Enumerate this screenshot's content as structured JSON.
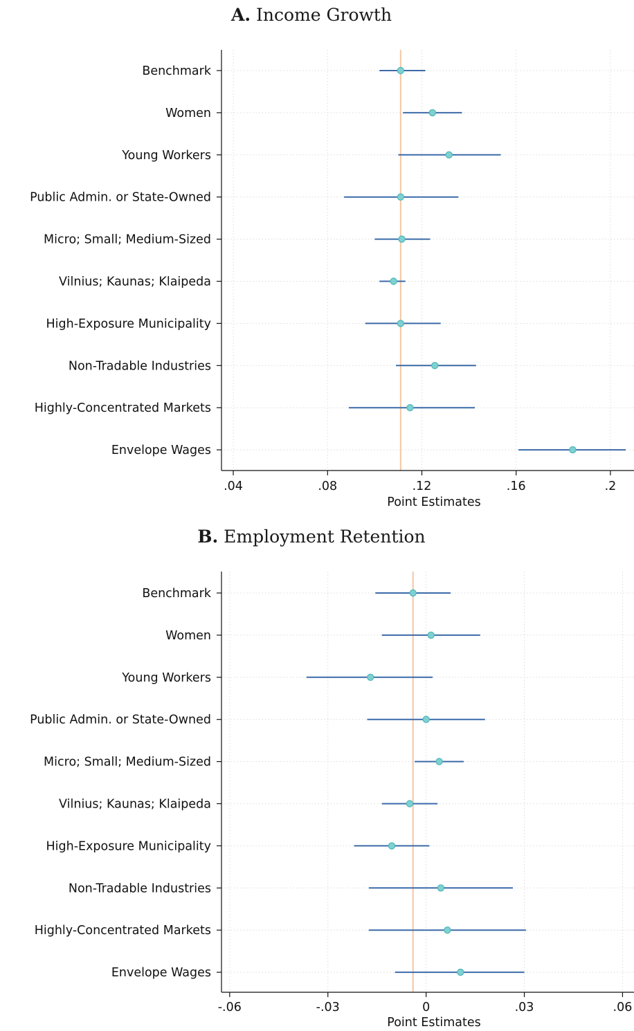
{
  "chart_data": [
    {
      "type": "scatter",
      "panel_letter": "A.",
      "title": "Income Growth",
      "xlabel": "Point Estimates",
      "xlim": [
        0.035,
        0.21
      ],
      "xticks": [
        0.04,
        0.08,
        0.12,
        0.16,
        0.2
      ],
      "xtick_labels": [
        ".04",
        ".08",
        ".12",
        ".16",
        ".2"
      ],
      "reference_line": 0.111,
      "grid": true,
      "categories": [
        "Benchmark",
        "Women",
        "Young Workers",
        "Public Admin. or State-Owned",
        "Micro; Small; Medium-Sized",
        "Vilnius; Kaunas; Klaipeda",
        "High-Exposure Municipality",
        "Non-Tradable Industries",
        "Highly-Concentrated Markets",
        "Envelope Wages"
      ],
      "series": [
        {
          "estimates": [
            0.111,
            0.1245,
            0.1315,
            0.111,
            0.1115,
            0.108,
            0.111,
            0.1255,
            0.115,
            0.184
          ],
          "ci_low": [
            0.102,
            0.112,
            0.11,
            0.087,
            0.1,
            0.102,
            0.096,
            0.109,
            0.089,
            0.161
          ],
          "ci_high": [
            0.1215,
            0.137,
            0.1535,
            0.1355,
            0.1235,
            0.113,
            0.128,
            0.143,
            0.1425,
            0.2065
          ]
        }
      ],
      "colors": {
        "marker": "#7fd1d1",
        "marker_edge": "#4fb5b8",
        "ci": "#3a6aa8",
        "reference": "#f4c6a4",
        "grid": "#dcdcdc"
      }
    },
    {
      "type": "scatter",
      "panel_letter": "B.",
      "title": "Employment Retention",
      "xlabel": "Point Estimates",
      "xlim": [
        -0.0625,
        0.0635
      ],
      "xticks": [
        -0.06,
        -0.03,
        0,
        0.03,
        0.06
      ],
      "xtick_labels": [
        "-.06",
        "-.03",
        "0",
        ".03",
        ".06"
      ],
      "reference_line": -0.004,
      "grid": true,
      "categories": [
        "Benchmark",
        "Women",
        "Young Workers",
        "Public Admin. or State-Owned",
        "Micro; Small; Medium-Sized",
        "Vilnius; Kaunas; Klaipeda",
        "High-Exposure Municipality",
        "Non-Tradable Industries",
        "Highly-Concentrated Markets",
        "Envelope Wages"
      ],
      "series": [
        {
          "estimates": [
            -0.004,
            0.0015,
            -0.017,
            0.0,
            0.004,
            -0.005,
            -0.0105,
            0.0045,
            0.0065,
            0.0105
          ],
          "ci_low": [
            -0.0155,
            -0.0135,
            -0.0365,
            -0.018,
            -0.0035,
            -0.0135,
            -0.022,
            -0.0175,
            -0.0175,
            -0.0095
          ],
          "ci_high": [
            0.0075,
            0.0165,
            0.002,
            0.018,
            0.0115,
            0.0035,
            0.001,
            0.0265,
            0.0305,
            0.03
          ]
        }
      ],
      "colors": {
        "marker": "#7fd1d1",
        "marker_edge": "#4fb5b8",
        "ci": "#3a6aa8",
        "reference": "#f4c6a4",
        "grid": "#dcdcdc"
      }
    }
  ]
}
